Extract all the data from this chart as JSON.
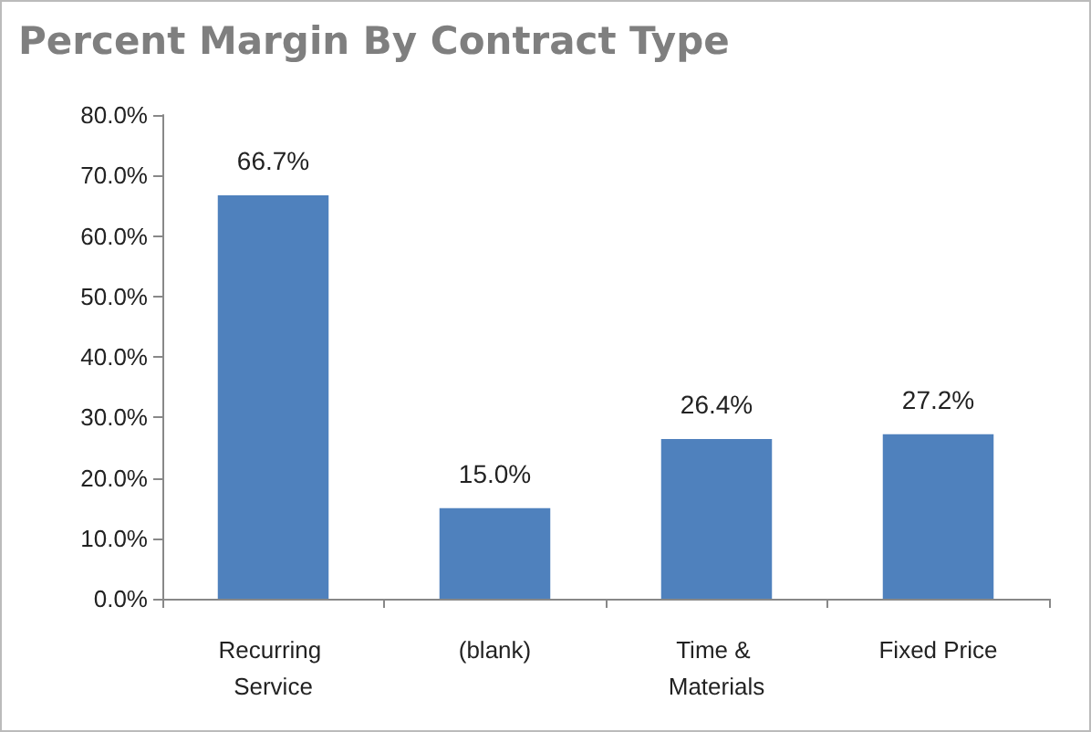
{
  "chart_data": {
    "type": "bar",
    "title": "Percent Margin By Contract Type",
    "categories": [
      "Recurring Service",
      "(blank)",
      "Time & Materials",
      "Fixed Price"
    ],
    "values": [
      66.7,
      15.0,
      26.4,
      27.2
    ],
    "color": "#4f81bd",
    "value_labels": [
      "66.7%",
      "15.0%",
      "26.4%",
      "27.2%"
    ],
    "ylim": [
      0,
      80
    ],
    "yticks": [
      {
        "value": 0,
        "label": "0.0%"
      },
      {
        "value": 10,
        "label": "10.0%"
      },
      {
        "value": 20,
        "label": "20.0%"
      },
      {
        "value": 30,
        "label": "30.0%"
      },
      {
        "value": 40,
        "label": "40.0%"
      },
      {
        "value": 50,
        "label": "50.0%"
      },
      {
        "value": 60,
        "label": "60.0%"
      },
      {
        "value": 70,
        "label": "70.0%"
      },
      {
        "value": 80,
        "label": "80.0%"
      }
    ],
    "grid": false
  }
}
